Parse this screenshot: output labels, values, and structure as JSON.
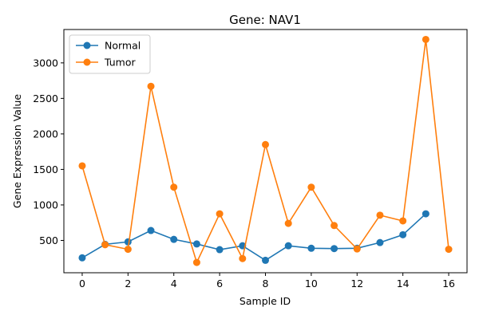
{
  "chart_data": {
    "type": "line",
    "title": "Gene: NAV1",
    "xlabel": "Sample ID",
    "ylabel": "Gene Expression Value",
    "xlim": [
      -0.8,
      16.8
    ],
    "ylim": [
      45,
      3470
    ],
    "xticks": [
      0,
      2,
      4,
      6,
      8,
      10,
      12,
      14,
      16
    ],
    "yticks": [
      500,
      1000,
      1500,
      2000,
      2500,
      3000
    ],
    "grid": false,
    "legend_position": "top-left",
    "series": [
      {
        "name": "Normal",
        "color": "#1f77b4",
        "marker": "circle",
        "x": [
          0,
          1,
          2,
          3,
          4,
          5,
          6,
          7,
          8,
          9,
          10,
          11,
          12,
          13,
          14,
          15
        ],
        "values": [
          255,
          445,
          480,
          640,
          515,
          450,
          370,
          425,
          220,
          425,
          390,
          385,
          390,
          470,
          580,
          875
        ]
      },
      {
        "name": "Tumor",
        "color": "#ff7f0e",
        "marker": "circle",
        "x": [
          0,
          1,
          2,
          3,
          4,
          5,
          6,
          7,
          8,
          9,
          10,
          11,
          12,
          13,
          14,
          15,
          16
        ],
        "values": [
          1550,
          440,
          375,
          2670,
          1250,
          190,
          875,
          245,
          1850,
          740,
          1250,
          710,
          380,
          855,
          775,
          3330,
          375
        ]
      }
    ]
  }
}
